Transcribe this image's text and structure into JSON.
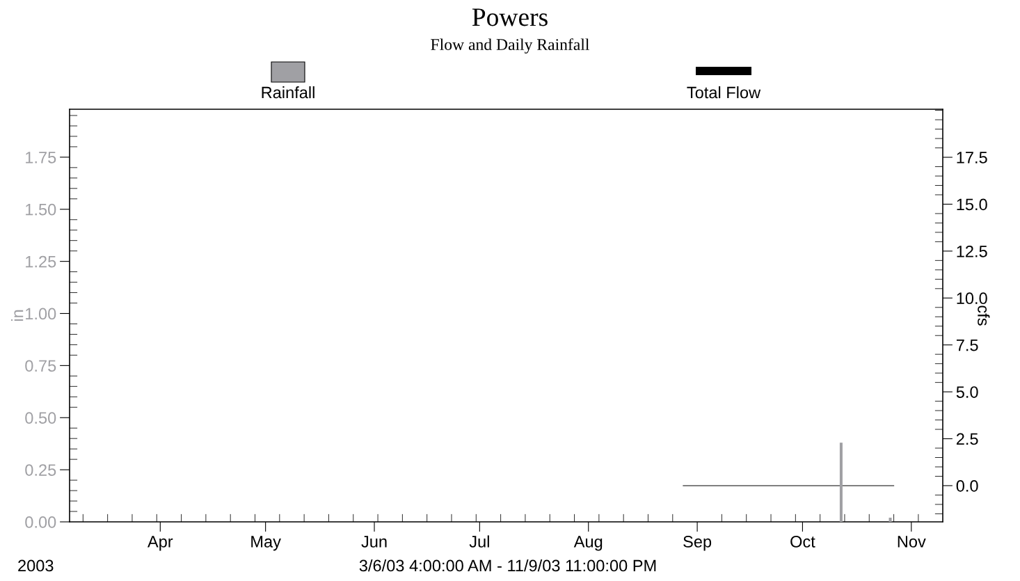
{
  "chart_data": {
    "type": "bar",
    "title": "Powers",
    "subtitle": "Flow and Daily Rainfall",
    "ylabel": "in",
    "y2label": "cfs",
    "annotations": [
      "2003",
      "3/6/03 4:00:00 AM - 11/9/03 11:00:00 PM"
    ],
    "series": [
      {
        "name": "Rainfall",
        "color": "#a0a0a4",
        "x": [
          "2003-10-12",
          "2003-10-26"
        ],
        "values": [
          0.38,
          0.02
        ]
      },
      {
        "name": "Total Flow",
        "type": "line",
        "axis": "y2",
        "color": "#000000",
        "x": [
          "2003-08-28",
          "2003-10-27"
        ],
        "values": [
          0,
          0
        ]
      }
    ],
    "xlim": [
      "2003-03-06T04:00",
      "2003-11-09T23:00"
    ],
    "xticks": [
      {
        "value": "2003-04-01",
        "label": "Apr"
      },
      {
        "value": "2003-05-01",
        "label": "May"
      },
      {
        "value": "2003-06-01",
        "label": "Jun"
      },
      {
        "value": "2003-07-01",
        "label": "Jul"
      },
      {
        "value": "2003-08-01",
        "label": "Aug"
      },
      {
        "value": "2003-09-01",
        "label": "Sep"
      },
      {
        "value": "2003-10-01",
        "label": "Oct"
      },
      {
        "value": "2003-11-01",
        "label": "Nov"
      }
    ],
    "ylim": [
      0,
      1.98
    ],
    "yticks": [
      {
        "value": 0,
        "label": "0.00"
      },
      {
        "value": 0.25,
        "label": "0.25"
      },
      {
        "value": 0.5,
        "label": "0.50"
      },
      {
        "value": 0.75,
        "label": "0.75"
      },
      {
        "value": 1,
        "label": "1.00"
      },
      {
        "value": 1.25,
        "label": "1.25"
      },
      {
        "value": 1.5,
        "label": "1.50"
      },
      {
        "value": 1.75,
        "label": "1.75"
      }
    ],
    "y2lim": [
      -1.93,
      20.06
    ],
    "y2ticks": [
      {
        "value": 0,
        "label": "0.0"
      },
      {
        "value": 2.5,
        "label": "2.5"
      },
      {
        "value": 5,
        "label": "5.0"
      },
      {
        "value": 7.5,
        "label": "7.5"
      },
      {
        "value": 10,
        "label": "10.0"
      },
      {
        "value": 12.5,
        "label": "12.5"
      },
      {
        "value": 15,
        "label": "15.0"
      },
      {
        "value": 17.5,
        "label": "17.5"
      }
    ],
    "grid": false,
    "legend": "top"
  }
}
